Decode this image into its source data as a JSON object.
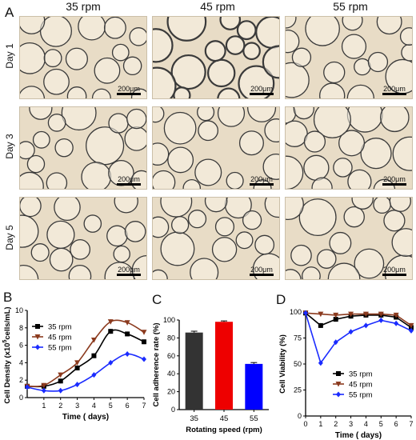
{
  "panel_letters": {
    "a": "A",
    "b": "B",
    "c": "C",
    "d": "D"
  },
  "micrographs": {
    "columns": [
      "35 rpm",
      "45 rpm",
      "55 rpm"
    ],
    "rows": [
      "Day 1",
      "Day 3",
      "Day 5"
    ],
    "scale_label": "200μm",
    "colors": {
      "background": "#e8dcc6",
      "bead_edge": "#3a3a3a"
    }
  },
  "chart_data": [
    {
      "type": "line",
      "panel": "B",
      "ylabel_parts": {
        "pre": "Cell Density (x10",
        "sup": "5",
        "post": "cells/mL)"
      },
      "xlabel": "Time ( days)",
      "xlim": [
        0,
        7
      ],
      "ylim": [
        0,
        10
      ],
      "xticks": [
        "1",
        "2",
        "3",
        "4",
        "5",
        "6",
        "7"
      ],
      "yticks": [
        "0",
        "2",
        "4",
        "6",
        "8",
        "10"
      ],
      "legend_position": "top-left",
      "x": [
        0,
        1,
        2,
        3,
        4,
        5,
        6,
        7
      ],
      "series": [
        {
          "name": "35 rpm",
          "color": "#000000",
          "marker": "square",
          "values": [
            1.3,
            1.3,
            1.9,
            3.4,
            4.8,
            7.6,
            7.3,
            6.4
          ]
        },
        {
          "name": "45 rpm",
          "color": "#8b3a1e",
          "marker": "triangle-down",
          "values": [
            1.3,
            1.4,
            2.6,
            4.0,
            6.6,
            8.7,
            8.6,
            7.5
          ]
        },
        {
          "name": "55 rpm",
          "color": "#1a2bff",
          "marker": "diamond",
          "values": [
            1.2,
            0.8,
            0.8,
            1.5,
            2.6,
            4.0,
            5.0,
            4.4
          ]
        }
      ]
    },
    {
      "type": "bar",
      "panel": "C",
      "ylabel": "Cell adherence rate (%)",
      "xlabel": "Rotating speed (rpm)",
      "categories": [
        "35",
        "45",
        "55"
      ],
      "values": [
        86,
        98,
        51
      ],
      "errors": [
        1.5,
        1.0,
        1.5
      ],
      "colors": [
        "#333333",
        "#ee0000",
        "#0000ff"
      ],
      "ylim": [
        0,
        100
      ],
      "yticks": [
        "0",
        "20",
        "40",
        "60",
        "80",
        "100"
      ]
    },
    {
      "type": "line",
      "panel": "D",
      "ylabel": "Cell Viability (%)",
      "xlabel": "Time ( days)",
      "xlim": [
        0,
        7
      ],
      "ylim": [
        0,
        100
      ],
      "xticks": [
        "0",
        "1",
        "2",
        "3",
        "4",
        "5",
        "6",
        "7"
      ],
      "yticks": [
        "0",
        "25",
        "50",
        "75",
        "100"
      ],
      "legend_position": "bottom-center",
      "x": [
        0,
        1,
        2,
        3,
        4,
        5,
        6,
        7
      ],
      "series": [
        {
          "name": "35 rpm",
          "color": "#000000",
          "marker": "square",
          "values": [
            99,
            87,
            93,
            96,
            97,
            97,
            95,
            85
          ]
        },
        {
          "name": "45 rpm",
          "color": "#8b3a1e",
          "marker": "triangle-down",
          "values": [
            99,
            98,
            97,
            98,
            98,
            98,
            97,
            87
          ]
        },
        {
          "name": "55 rpm",
          "color": "#1a2bff",
          "marker": "diamond",
          "values": [
            99,
            51,
            71,
            81,
            87,
            92,
            89,
            82
          ]
        }
      ]
    }
  ]
}
